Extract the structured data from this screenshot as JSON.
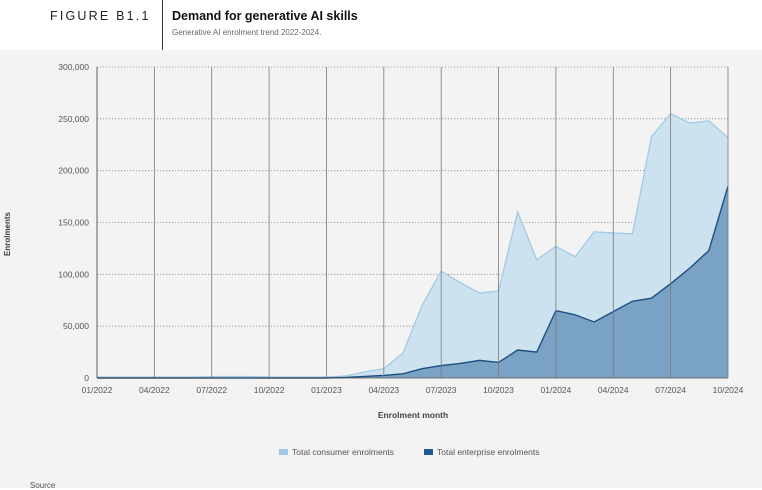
{
  "header": {
    "figure_label": "FIGURE B1.1",
    "title": "Demand for generative AI skills",
    "subtitle": "Generative AI enrolment trend 2022-2024."
  },
  "footer": {
    "source_label": "Source"
  },
  "colors": {
    "consumer_fill": "#cde2ef",
    "consumer_line": "#9ec8e4",
    "enterprise_fill": "#7aa2c4",
    "enterprise_line": "#1f4f82",
    "legend_consumer": "#9ec8e4",
    "legend_enterprise": "#1f5a96"
  },
  "chart_data": {
    "type": "area",
    "xlabel": "Enrolment month",
    "ylabel": "Enrolments",
    "ylim": [
      0,
      300000
    ],
    "yticks": [
      0,
      50000,
      100000,
      150000,
      200000,
      250000,
      300000
    ],
    "ytick_labels": [
      "0",
      "50,000",
      "100,000",
      "150,000",
      "200,000",
      "250,000",
      "300,000"
    ],
    "x": [
      "01/2022",
      "02/2022",
      "03/2022",
      "04/2022",
      "05/2022",
      "06/2022",
      "07/2022",
      "08/2022",
      "09/2022",
      "10/2022",
      "11/2022",
      "12/2022",
      "01/2023",
      "02/2023",
      "03/2023",
      "04/2023",
      "05/2023",
      "06/2023",
      "07/2023",
      "08/2023",
      "09/2023",
      "10/2023",
      "11/2023",
      "12/2023",
      "01/2024",
      "02/2024",
      "03/2024",
      "04/2024",
      "05/2024",
      "06/2024",
      "07/2024",
      "08/2024",
      "09/2024",
      "10/2024"
    ],
    "xtick_labels": [
      "01/2022",
      "04/2022",
      "07/2022",
      "10/2022",
      "01/2023",
      "04/2023",
      "07/2023",
      "10/2023",
      "01/2024",
      "04/2024",
      "07/2024",
      "10/2024"
    ],
    "grid": true,
    "legend_position": "bottom",
    "series": [
      {
        "name": "Total consumer enrolments",
        "values": [
          1000,
          1000,
          1000,
          1000,
          1000,
          1000,
          1500,
          1500,
          1500,
          1000,
          1000,
          1000,
          1000,
          2000,
          6000,
          9000,
          24000,
          70000,
          103000,
          92000,
          82000,
          84000,
          160000,
          114000,
          127000,
          117000,
          141000,
          140000,
          139000,
          233000,
          255000,
          246000,
          248000,
          232000
        ]
      },
      {
        "name": "Total enterprise enrolments",
        "values": [
          0,
          0,
          0,
          0,
          0,
          0,
          0,
          0,
          0,
          0,
          0,
          0,
          0,
          500,
          1500,
          2500,
          4000,
          9000,
          12000,
          14000,
          17000,
          15000,
          27000,
          25000,
          65000,
          61000,
          54000,
          64000,
          74000,
          77000,
          91000,
          106000,
          123000,
          185000
        ]
      }
    ]
  }
}
